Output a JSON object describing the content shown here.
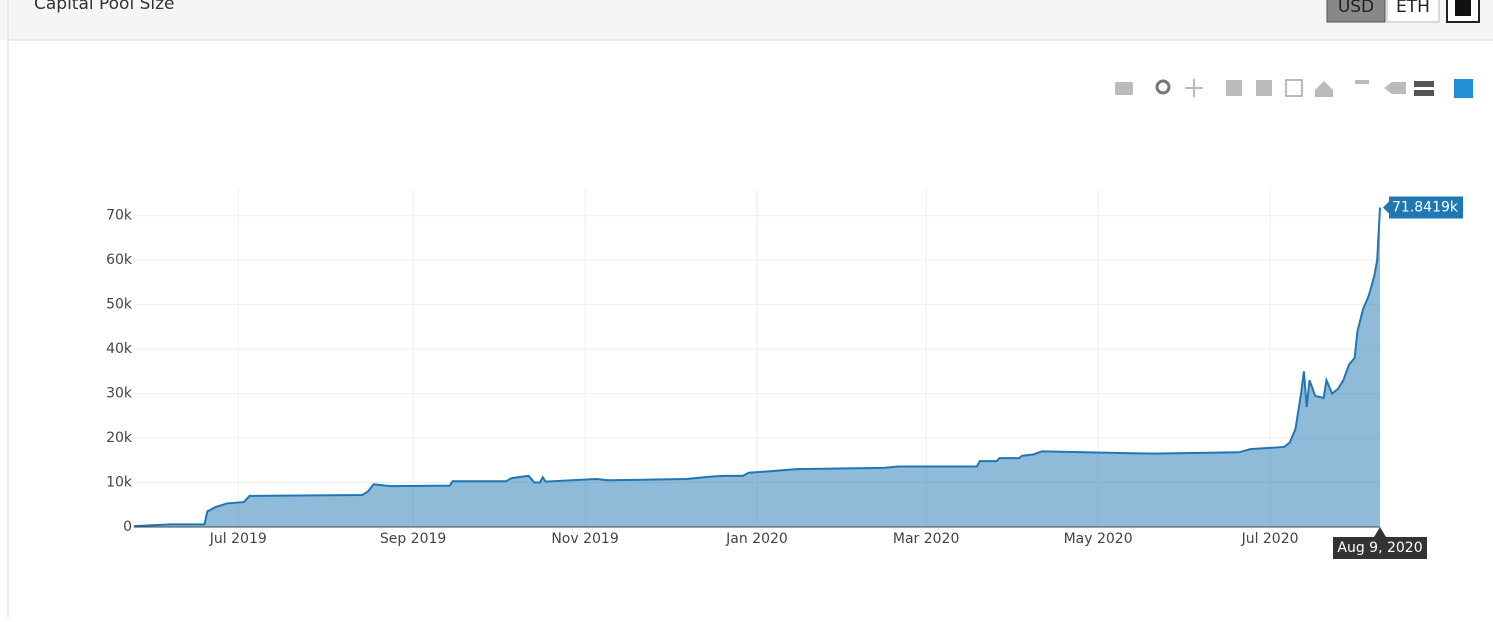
{
  "header": {
    "title": "Capital Pool Size",
    "buttons": [
      "USD",
      "ETH"
    ]
  },
  "chart_data": {
    "type": "area",
    "x": [
      "2019-05-25",
      "2019-06-07",
      "2019-06-19",
      "2019-06-20",
      "2019-06-23",
      "2019-06-27",
      "2019-07-03",
      "2019-07-05",
      "2019-08-14",
      "2019-08-16",
      "2019-08-18",
      "2019-08-24",
      "2019-09-14",
      "2019-09-15",
      "2019-10-04",
      "2019-10-06",
      "2019-10-12",
      "2019-10-14",
      "2019-10-16",
      "2019-10-17",
      "2019-10-18",
      "2019-11-05",
      "2019-11-09",
      "2019-12-07",
      "2019-12-15",
      "2019-12-20",
      "2019-12-27",
      "2019-12-29",
      "2020-01-05",
      "2020-01-15",
      "2020-02-15",
      "2020-02-20",
      "2020-03-19",
      "2020-03-20",
      "2020-03-26",
      "2020-03-27",
      "2020-04-03",
      "2020-04-04",
      "2020-04-08",
      "2020-04-11",
      "2020-04-20",
      "2020-05-20",
      "2020-06-20",
      "2020-06-24",
      "2020-07-06",
      "2020-07-08",
      "2020-07-10",
      "2020-07-12",
      "2020-07-13",
      "2020-07-14",
      "2020-07-15",
      "2020-07-17",
      "2020-07-20",
      "2020-07-21",
      "2020-07-23",
      "2020-07-25",
      "2020-07-27",
      "2020-07-29",
      "2020-07-31",
      "2020-08-01",
      "2020-08-03",
      "2020-08-05",
      "2020-08-07",
      "2020-08-08",
      "2020-08-09"
    ],
    "series": [
      {
        "name": "Capital Pool Size",
        "color": "#1f77b4",
        "values": [
          200,
          600,
          600,
          3500,
          4500,
          5300,
          5600,
          7000,
          7200,
          8000,
          9600,
          9200,
          9300,
          10300,
          10300,
          11000,
          11500,
          10000,
          10000,
          11200,
          10200,
          10800,
          10500,
          10800,
          11300,
          11500,
          11500,
          12200,
          12500,
          13000,
          13300,
          13600,
          13600,
          14800,
          14800,
          15500,
          15500,
          16000,
          16300,
          17000,
          16900,
          16500,
          16800,
          17500,
          18000,
          19000,
          22000,
          30000,
          35000,
          27000,
          33000,
          29500,
          29000,
          33000,
          30000,
          31000,
          33000,
          36500,
          38000,
          44000,
          49000,
          52000,
          56500,
          60000,
          71841.9
        ],
        "value_labels": [
          null,
          null,
          null,
          null,
          null,
          null,
          null,
          null,
          null,
          null,
          null,
          null,
          null,
          null,
          null,
          null,
          null,
          null,
          null,
          null,
          null,
          null,
          null,
          null,
          null,
          null,
          null,
          null,
          null,
          null,
          null,
          null,
          null,
          null,
          null,
          null,
          null,
          null,
          null,
          null,
          null,
          null,
          null,
          null,
          null,
          null,
          null,
          null,
          null,
          null,
          null,
          null,
          null,
          null,
          null,
          null,
          null,
          null,
          null,
          null,
          null,
          null,
          null,
          null,
          "71.8419k"
        ]
      }
    ],
    "hover_x_label": "Aug 9, 2020",
    "xlim": [
      "2019-05-25",
      "2020-08-09"
    ],
    "xticks": [
      {
        "value": "2019-07-01",
        "label": "Jul 2019"
      },
      {
        "value": "2019-09-01",
        "label": "Sep 2019"
      },
      {
        "value": "2019-11-01",
        "label": "Nov 2019"
      },
      {
        "value": "2020-01-01",
        "label": "Jan 2020"
      },
      {
        "value": "2020-03-01",
        "label": "Mar 2020"
      },
      {
        "value": "2020-05-01",
        "label": "May 2020"
      },
      {
        "value": "2020-07-01",
        "label": "Jul 2020"
      }
    ],
    "ylim": [
      0,
      76000
    ],
    "yticks": [
      0,
      {
        "value": 10000,
        "label": "10k"
      },
      {
        "value": 20000,
        "label": "20k"
      },
      {
        "value": 30000,
        "label": "30k"
      },
      {
        "value": 40000,
        "label": "40k"
      },
      {
        "value": 50000,
        "label": "50k"
      },
      {
        "value": 60000,
        "label": "60k"
      },
      {
        "value": 70000,
        "label": "70k"
      }
    ],
    "grid": true
  }
}
